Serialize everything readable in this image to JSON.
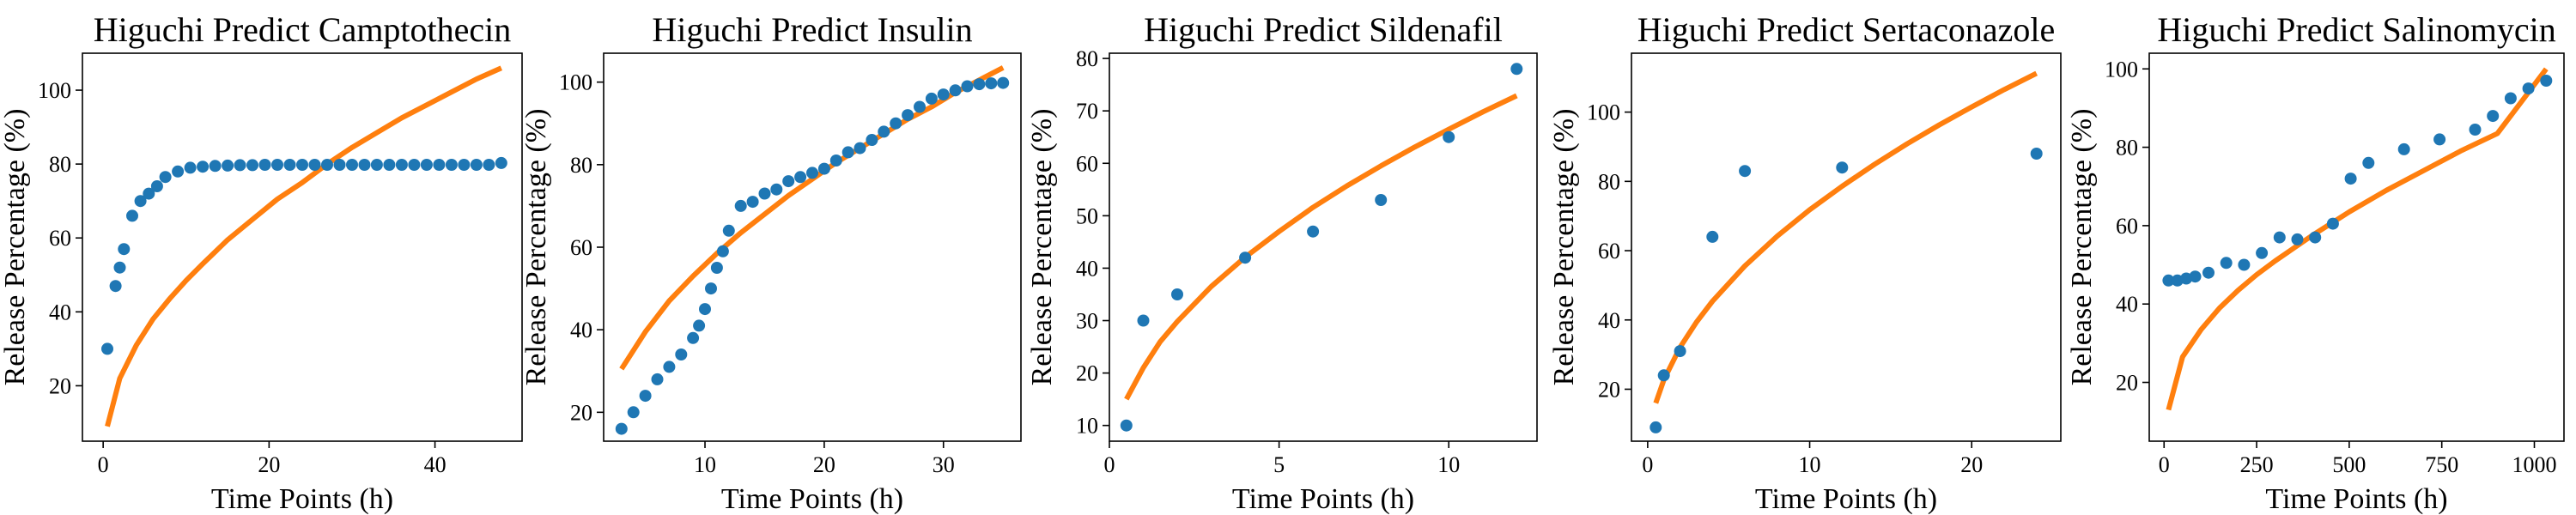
{
  "chart_data": [
    {
      "type": "scatter",
      "title": "Higuchi Predict Camptothecin",
      "xlabel": "Time Points (h)",
      "ylabel": "Release Percentage (%)",
      "xlim": [
        -2.5,
        50.5
      ],
      "ylim": [
        5,
        110
      ],
      "xticks": [
        0,
        20,
        40
      ],
      "yticks": [
        20,
        40,
        60,
        80,
        100
      ],
      "grid": false,
      "colors": {
        "points": "#1f77b4",
        "fit": "#ff7f0e"
      },
      "series": [
        {
          "kind": "points",
          "x": [
            0.5,
            1.5,
            2,
            2.5,
            3.5,
            4.5,
            5.5,
            6.5,
            7.5,
            9,
            10.5,
            12,
            13.5,
            15,
            16.5,
            18,
            19.5,
            21,
            22.5,
            24,
            25.5,
            27,
            28.5,
            30,
            31.5,
            33,
            34.5,
            36,
            37.5,
            39,
            40.5,
            42,
            43.5,
            45,
            46.5,
            48
          ],
          "y": [
            30,
            47,
            52,
            57,
            66,
            70,
            72,
            74,
            76.5,
            78,
            79,
            79.3,
            79.5,
            79.6,
            79.7,
            79.7,
            79.8,
            79.8,
            79.8,
            79.8,
            79.8,
            79.8,
            79.8,
            79.8,
            79.8,
            79.8,
            79.8,
            79.8,
            79.8,
            79.8,
            79.8,
            79.8,
            79.8,
            79.8,
            79.8,
            80.3
          ]
        },
        {
          "kind": "fit",
          "x": [
            0.5,
            2,
            4,
            6,
            8,
            10,
            12,
            15,
            18,
            21,
            24,
            27,
            30,
            33,
            36,
            39,
            42,
            45,
            48
          ],
          "y": [
            9,
            22,
            31,
            38,
            43.5,
            48.5,
            53,
            59.5,
            65,
            70.5,
            75,
            80,
            84.5,
            88.5,
            92.5,
            96,
            99.5,
            103,
            106
          ]
        }
      ]
    },
    {
      "type": "scatter",
      "title": "Higuchi Predict Insulin",
      "xlabel": "Time Points (h)",
      "ylabel": "Release Percentage (%)",
      "xlim": [
        1.5,
        36.5
      ],
      "ylim": [
        13,
        107
      ],
      "xticks": [
        10,
        20,
        30
      ],
      "yticks": [
        20,
        40,
        60,
        80,
        100
      ],
      "grid": false,
      "colors": {
        "points": "#1f77b4",
        "fit": "#ff7f0e"
      },
      "series": [
        {
          "kind": "points",
          "x": [
            3,
            4,
            5,
            6,
            7,
            8,
            9,
            9.5,
            10,
            10.5,
            11,
            11.5,
            12,
            13,
            14,
            15,
            16,
            17,
            18,
            19,
            20,
            21,
            22,
            23,
            24,
            25,
            26,
            27,
            28,
            29,
            30,
            31,
            32,
            33,
            34,
            35
          ],
          "y": [
            16,
            20,
            24,
            28,
            31,
            34,
            38,
            41,
            45,
            50,
            55,
            59,
            64,
            70,
            71,
            73,
            74,
            76,
            77,
            78,
            79,
            81,
            83,
            84,
            86,
            88,
            90,
            92,
            94,
            96,
            97,
            98,
            99,
            99.5,
            99.7,
            99.8
          ]
        },
        {
          "kind": "fit",
          "x": [
            3,
            5,
            7,
            9,
            11,
            13,
            15,
            17,
            19,
            21,
            23,
            25,
            27,
            29,
            31,
            33,
            35
          ],
          "y": [
            30.5,
            39.5,
            47,
            53,
            58.5,
            63.5,
            68,
            72.5,
            76.5,
            80.5,
            84,
            87.5,
            91,
            94,
            97.5,
            100.5,
            103.5
          ]
        }
      ]
    },
    {
      "type": "scatter",
      "title": "Higuchi Predict Sildenafil",
      "xlabel": "Time Points (h)",
      "ylabel": "Release Percentage (%)",
      "xlim": [
        0,
        12.6
      ],
      "ylim": [
        7,
        81
      ],
      "xticks": [
        0,
        5,
        10
      ],
      "yticks": [
        10,
        20,
        30,
        40,
        50,
        60,
        70,
        80
      ],
      "grid": false,
      "colors": {
        "points": "#1f77b4",
        "fit": "#ff7f0e"
      },
      "series": [
        {
          "kind": "points",
          "x": [
            0.5,
            1,
            2,
            4,
            6,
            8,
            10,
            12
          ],
          "y": [
            10,
            30,
            35,
            42,
            47,
            53,
            65,
            78
          ]
        },
        {
          "kind": "fit",
          "x": [
            0.5,
            1,
            1.5,
            2,
            3,
            4,
            5,
            6,
            7,
            8,
            9,
            10,
            11,
            12
          ],
          "y": [
            15,
            21,
            26,
            29.8,
            36.5,
            42.1,
            47,
            51.6,
            55.7,
            59.5,
            63.1,
            66.5,
            69.8,
            72.9
          ]
        }
      ]
    },
    {
      "type": "scatter",
      "title": "Higuchi Predict Sertaconazole",
      "xlabel": "Time Points (h)",
      "ylabel": "Release Percentage (%)",
      "xlim": [
        -1,
        25.5
      ],
      "ylim": [
        5,
        117
      ],
      "xticks": [
        0,
        10,
        20
      ],
      "yticks": [
        20,
        40,
        60,
        80,
        100
      ],
      "grid": false,
      "colors": {
        "points": "#1f77b4",
        "fit": "#ff7f0e"
      },
      "series": [
        {
          "kind": "points",
          "x": [
            0.5,
            1,
            2,
            4,
            6,
            12,
            24
          ],
          "y": [
            9,
            24,
            31,
            64,
            83,
            84,
            88
          ]
        },
        {
          "kind": "fit",
          "x": [
            0.5,
            1,
            2,
            3,
            4,
            6,
            8,
            10,
            12,
            14,
            16,
            18,
            20,
            22,
            24
          ],
          "y": [
            16,
            22.7,
            32.1,
            39.3,
            45.4,
            55.6,
            64.2,
            71.8,
            78.6,
            84.9,
            90.8,
            96.3,
            101.5,
            106.5,
            111.2
          ]
        }
      ]
    },
    {
      "type": "scatter",
      "title": "Higuchi Predict Salinomycin",
      "xlabel": "Time Points (h)",
      "ylabel": "Release Percentage (%)",
      "xlim": [
        -40,
        1080
      ],
      "ylim": [
        5,
        104
      ],
      "xticks": [
        0,
        250,
        500,
        750,
        1000
      ],
      "yticks": [
        20,
        40,
        60,
        80,
        100
      ],
      "grid": false,
      "colors": {
        "points": "#1f77b4",
        "fit": "#ff7f0e"
      },
      "series": [
        {
          "kind": "points",
          "x": [
            12,
            36,
            60,
            84,
            120,
            168,
            216,
            264,
            312,
            360,
            408,
            456,
            504,
            552,
            648,
            744,
            840,
            888,
            936,
            984,
            1032
          ],
          "y": [
            46,
            46,
            46.5,
            47,
            48,
            50.5,
            50,
            53,
            57,
            56.5,
            57,
            60.5,
            72,
            76,
            79.5,
            82,
            84.5,
            88,
            92.5,
            95,
            97
          ]
        },
        {
          "kind": "fit",
          "x": [
            12,
            50,
            100,
            150,
            200,
            250,
            300,
            400,
            500,
            600,
            700,
            800,
            900,
            1032
          ],
          "y": [
            13,
            26.5,
            33.5,
            39,
            43.5,
            47.5,
            51,
            57.5,
            63.5,
            69,
            74,
            79,
            83.5,
            100
          ]
        }
      ]
    }
  ]
}
